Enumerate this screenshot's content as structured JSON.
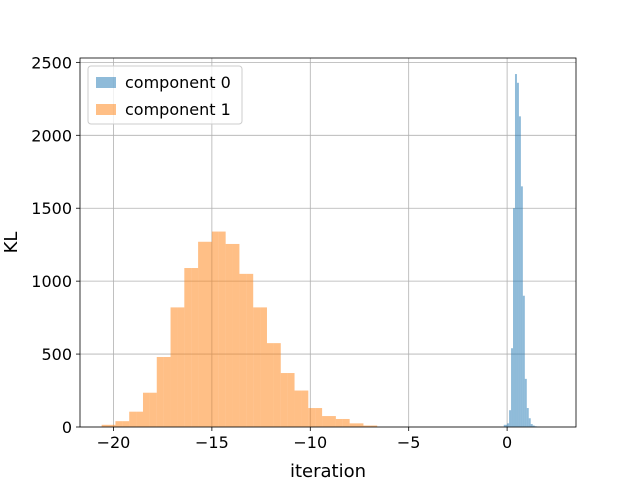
{
  "chart_data": {
    "type": "histogram",
    "xlabel": "iteration",
    "ylabel": "KL",
    "xlim": [
      -21.7,
      3.5
    ],
    "ylim": [
      0,
      2530
    ],
    "xticks": [
      -20,
      -15,
      -10,
      -5,
      0
    ],
    "xtick_labels": [
      "−20",
      "−15",
      "−10",
      "−5",
      "0"
    ],
    "yticks": [
      0,
      500,
      1000,
      1500,
      2000,
      2500
    ],
    "ytick_labels": [
      "0",
      "500",
      "1000",
      "1500",
      "2000",
      "2500"
    ],
    "grid": true,
    "legend_position": "upper-left",
    "series": [
      {
        "name": "component 0",
        "color": "#1f77b4",
        "alpha": 0.5,
        "bin_edges": [
          -0.17,
          0.0,
          0.1,
          0.2,
          0.3,
          0.4,
          0.5,
          0.6,
          0.7,
          0.8,
          0.9,
          1.0,
          1.1,
          1.2,
          1.3,
          1.4,
          1.5,
          1.6,
          1.7,
          1.8,
          1.9,
          2.0
        ],
        "counts": [
          15,
          25,
          115,
          540,
          1500,
          2420,
          2360,
          2130,
          1650,
          900,
          330,
          130,
          60,
          20,
          10,
          5,
          2,
          1,
          0,
          0,
          0
        ]
      },
      {
        "name": "component 1",
        "color": "#ff7f0e",
        "alpha": 0.5,
        "bin_edges": [
          -20.6,
          -20.25,
          -19.9,
          -19.55,
          -19.2,
          -18.85,
          -18.5,
          -18.15,
          -17.8,
          -17.45,
          -17.1,
          -16.75,
          -16.4,
          -16.05,
          -15.7,
          -15.35,
          -15.0,
          -14.65,
          -14.3,
          -13.95,
          -13.6,
          -13.25,
          -12.9,
          -12.55,
          -12.2,
          -11.85,
          -11.5,
          -11.15,
          -10.8,
          -10.45,
          -10.1,
          -9.75,
          -9.4,
          -9.05,
          -8.7,
          -8.35,
          -8.0,
          -7.65,
          -7.3,
          -6.95,
          -6.6
        ],
        "counts": [
          15,
          15,
          40,
          40,
          105,
          105,
          235,
          235,
          480,
          480,
          820,
          820,
          1090,
          1090,
          1270,
          1270,
          1340,
          1340,
          1255,
          1255,
          1050,
          1050,
          820,
          820,
          575,
          575,
          370,
          370,
          250,
          250,
          130,
          130,
          75,
          75,
          55,
          55,
          25,
          25,
          10,
          10
        ]
      }
    ]
  }
}
